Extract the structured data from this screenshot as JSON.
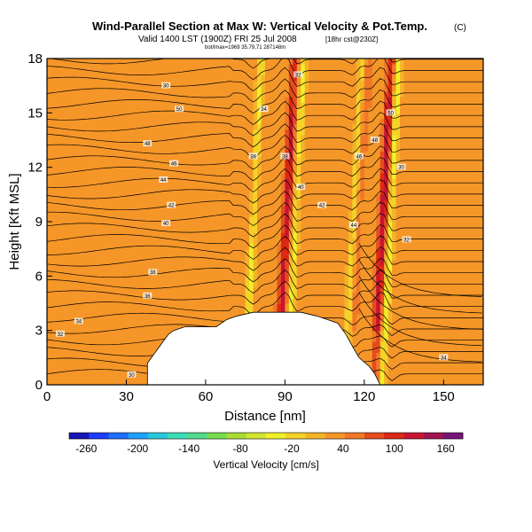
{
  "chart_data": {
    "type": "heatmap",
    "title": "Wind-Parallel Section at Max W: Vertical Velocity & Pot.Temp.",
    "title_mark": "(C)",
    "subtitle": "Valid 1400 LST (1900Z) FRI 25 Jul 2008",
    "subtitle_small_pre": "(1900Z)",
    "subtitle_run": "[18hr cst@230Z]",
    "subtitle_line2": "bot/lmax=1969 35.79,71 287148m",
    "xlabel": "Distance [nm]",
    "ylabel": "Height [Kft MSL]",
    "xlim": [
      0,
      165
    ],
    "ylim": [
      0,
      18
    ],
    "x_ticks": [
      0,
      30,
      60,
      90,
      120,
      150
    ],
    "y_ticks": [
      0,
      3,
      6,
      9,
      12,
      15,
      18
    ],
    "field": "Vertical Velocity [cm/s]",
    "colorbar": {
      "label": "Vertical Velocity [cm/s]",
      "ticks": [
        "-260",
        "-200",
        "-140",
        "-80",
        "-20",
        "40",
        "100",
        "160"
      ],
      "range": [
        -280,
        180
      ],
      "colors": [
        "#1515b4",
        "#1e3cff",
        "#1e6eff",
        "#1ea0ff",
        "#28c8dc",
        "#3cdcb4",
        "#50dc8c",
        "#78dc50",
        "#aadc32",
        "#d2e632",
        "#f0f028",
        "#f5d228",
        "#f5b428",
        "#f59628",
        "#f07828",
        "#e64b1e",
        "#dc2814",
        "#c81432",
        "#a01450",
        "#781478"
      ]
    },
    "updraft_columns": [
      {
        "x": 90.5,
        "w_cm_s": 120
      },
      {
        "x": 127,
        "w_cm_s": 130
      },
      {
        "x": 118,
        "w_cm_s": 55
      }
    ],
    "downdraft_columns": [
      {
        "x": 78,
        "w_cm_s": -30
      },
      {
        "x": 94,
        "w_cm_s": -30
      },
      {
        "x": 130,
        "w_cm_s": -40
      },
      {
        "x": 116,
        "w_cm_s": -25
      }
    ],
    "contour_labels": [
      "30",
      "32",
      "34",
      "36",
      "38",
      "40",
      "42",
      "44",
      "46",
      "48",
      "50"
    ]
  }
}
